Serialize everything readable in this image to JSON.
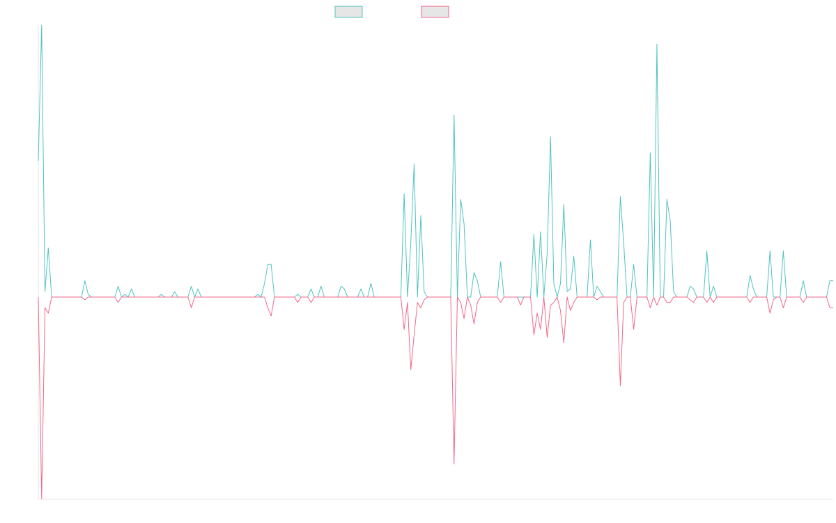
{
  "chart_data": {
    "type": "line",
    "title": "",
    "xlabel": "",
    "ylabel": "",
    "legend": {
      "position": "top-center",
      "show_labels": false
    },
    "grid": false,
    "ylim": [
      -1.0,
      1.0
    ],
    "series": [
      {
        "color": "#4fc3c0",
        "fill": "#e6e6e6",
        "values": [
          0.5,
          1.0,
          0.02,
          0.18,
          0.0,
          0.0,
          0.0,
          0.0,
          0.0,
          0.0,
          0.0,
          0.0,
          0.0,
          0.0,
          0.06,
          0.01,
          0.0,
          0.0,
          0.0,
          0.0,
          0.0,
          0.0,
          0.0,
          0.0,
          0.04,
          0.0,
          0.01,
          0.0,
          0.03,
          0.0,
          0.0,
          0.0,
          0.0,
          0.0,
          0.0,
          0.0,
          0.0,
          0.01,
          0.0,
          0.0,
          0.0,
          0.02,
          0.0,
          0.0,
          0.0,
          0.0,
          0.04,
          0.0,
          0.03,
          0.0,
          0.0,
          0.0,
          0.0,
          0.0,
          0.0,
          0.0,
          0.0,
          0.0,
          0.0,
          0.0,
          0.0,
          0.0,
          0.0,
          0.0,
          0.0,
          0.0,
          0.01,
          0.0,
          0.05,
          0.12,
          0.12,
          0.0,
          0.0,
          0.0,
          0.0,
          0.0,
          0.0,
          0.0,
          0.01,
          0.0,
          0.0,
          0.0,
          0.03,
          0.0,
          0.0,
          0.04,
          0.0,
          0.0,
          0.0,
          0.0,
          0.0,
          0.04,
          0.03,
          0.0,
          0.0,
          0.0,
          0.0,
          0.03,
          0.0,
          0.0,
          0.05,
          0.0,
          0.0,
          0.0,
          0.0,
          0.0,
          0.0,
          0.0,
          0.0,
          0.0,
          0.38,
          0.0,
          0.2,
          0.49,
          0.0,
          0.3,
          0.02,
          0.0,
          0.0,
          0.0,
          0.0,
          0.0,
          0.0,
          0.0,
          0.0,
          0.67,
          0.0,
          0.36,
          0.27,
          0.0,
          0.0,
          0.09,
          0.06,
          0.0,
          0.0,
          0.0,
          0.0,
          0.0,
          0.0,
          0.13,
          0.0,
          0.0,
          0.0,
          0.0,
          0.0,
          0.0,
          0.0,
          0.0,
          0.0,
          0.23,
          0.0,
          0.24,
          0.0,
          0.16,
          0.59,
          0.05,
          0.0,
          0.05,
          0.34,
          0.02,
          0.03,
          0.15,
          0.0,
          0.0,
          0.0,
          0.0,
          0.21,
          0.0,
          0.04,
          0.02,
          0.0,
          0.0,
          0.0,
          0.0,
          0.0,
          0.37,
          0.2,
          0.0,
          0.0,
          0.12,
          0.0,
          0.0,
          0.0,
          0.0,
          0.53,
          0.0,
          0.93,
          0.0,
          0.0,
          0.36,
          0.28,
          0.02,
          0.0,
          0.0,
          0.0,
          0.0,
          0.04,
          0.03,
          0.0,
          0.0,
          0.0,
          0.17,
          0.0,
          0.04,
          0.0,
          0.0,
          0.0,
          0.0,
          0.0,
          0.0,
          0.0,
          0.0,
          0.0,
          0.0,
          0.08,
          0.03,
          0.0,
          0.0,
          0.0,
          0.0,
          0.17,
          0.0,
          0.0,
          0.0,
          0.17,
          0.0,
          0.0,
          0.0,
          0.0,
          0.0,
          0.06,
          0.0,
          0.0,
          0.0,
          0.0,
          0.0,
          0.0,
          0.0,
          0.06,
          0.06
        ]
      },
      {
        "color": "#f2678a",
        "fill": "#e6e6e6",
        "values": [
          0.0,
          -0.75,
          -0.04,
          -0.06,
          0.0,
          0.0,
          0.0,
          0.0,
          0.0,
          0.0,
          0.0,
          0.0,
          0.0,
          0.0,
          -0.01,
          0.0,
          0.0,
          0.0,
          0.0,
          0.0,
          0.0,
          0.0,
          0.0,
          0.0,
          -0.02,
          0.0,
          0.0,
          0.0,
          0.0,
          0.0,
          0.0,
          0.0,
          0.0,
          0.0,
          0.0,
          0.0,
          0.0,
          0.0,
          0.0,
          0.0,
          0.0,
          0.0,
          0.0,
          0.0,
          0.0,
          0.0,
          -0.04,
          0.0,
          0.0,
          0.0,
          0.0,
          0.0,
          0.0,
          0.0,
          0.0,
          0.0,
          0.0,
          0.0,
          0.0,
          0.0,
          0.0,
          0.0,
          0.0,
          0.0,
          0.0,
          0.0,
          0.0,
          0.0,
          0.0,
          -0.04,
          -0.07,
          0.0,
          0.0,
          0.0,
          0.0,
          0.0,
          0.0,
          0.0,
          -0.02,
          0.0,
          0.0,
          0.0,
          -0.02,
          0.0,
          0.0,
          0.0,
          0.0,
          0.0,
          0.0,
          0.0,
          0.0,
          0.0,
          0.0,
          0.0,
          0.0,
          0.0,
          0.0,
          0.0,
          0.0,
          0.0,
          0.0,
          0.0,
          0.0,
          0.0,
          0.0,
          0.0,
          0.0,
          0.0,
          0.0,
          0.0,
          -0.12,
          -0.02,
          -0.27,
          -0.14,
          -0.02,
          -0.04,
          -0.01,
          0.0,
          0.0,
          0.0,
          0.0,
          0.0,
          0.0,
          0.0,
          0.0,
          -0.62,
          0.0,
          -0.02,
          -0.08,
          0.0,
          -0.03,
          -0.1,
          -0.02,
          0.0,
          0.0,
          0.0,
          0.0,
          0.0,
          0.0,
          -0.02,
          0.0,
          0.0,
          0.0,
          0.0,
          0.0,
          -0.03,
          0.0,
          0.0,
          0.0,
          -0.14,
          -0.06,
          -0.12,
          0.0,
          -0.15,
          -0.03,
          -0.02,
          0.0,
          -0.05,
          -0.17,
          0.0,
          -0.05,
          -0.02,
          0.0,
          0.0,
          0.0,
          0.0,
          0.0,
          0.0,
          -0.01,
          0.0,
          0.0,
          0.0,
          0.0,
          0.0,
          0.0,
          -0.33,
          -0.02,
          0.0,
          0.0,
          -0.12,
          0.0,
          0.0,
          0.0,
          0.0,
          -0.04,
          0.0,
          -0.03,
          0.0,
          0.0,
          -0.02,
          -0.02,
          0.0,
          0.0,
          0.0,
          0.0,
          0.0,
          -0.01,
          -0.02,
          0.0,
          0.0,
          0.0,
          -0.02,
          0.0,
          -0.02,
          0.0,
          0.0,
          0.0,
          0.0,
          0.0,
          0.0,
          0.0,
          0.0,
          0.0,
          0.0,
          -0.02,
          0.0,
          0.0,
          0.0,
          0.0,
          0.0,
          -0.06,
          -0.01,
          0.0,
          0.0,
          -0.04,
          0.0,
          0.0,
          0.0,
          0.0,
          0.0,
          -0.02,
          0.0,
          0.0,
          0.0,
          0.0,
          0.0,
          0.0,
          0.0,
          -0.04,
          -0.04
        ]
      }
    ]
  }
}
